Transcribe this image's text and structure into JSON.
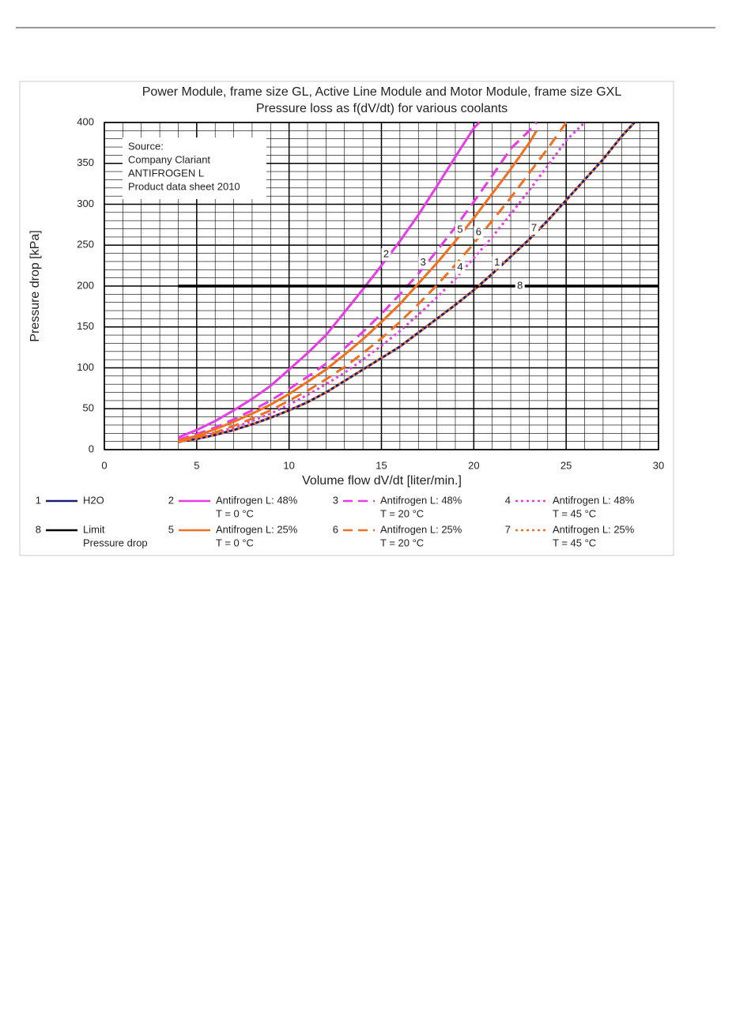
{
  "chart_data": {
    "type": "line",
    "title": "Power Module, frame size GL, Active Line Module and Motor Module, frame size GXL",
    "subtitle": "Pressure loss as f(dV/dt) for various coolants",
    "x_label": "Volume flow dV/dt [liter/min.]",
    "y_label": "Pressure drop [kPa]",
    "annotation": [
      "Source:",
      "Company Clariant",
      "ANTIFROGEN L",
      "Product data sheet 2010"
    ],
    "xlim": [
      0,
      30
    ],
    "xticks": [
      0,
      5,
      10,
      15,
      20,
      25,
      30
    ],
    "ylim": [
      0,
      400
    ],
    "yticks": [
      0,
      50,
      100,
      150,
      200,
      250,
      300,
      350,
      400
    ],
    "grid": true,
    "minor_grid_step": {
      "x": 1,
      "y": 10
    },
    "series": [
      {
        "label": "1",
        "name": "H2O",
        "color": "#1c1c78",
        "style": "solid",
        "x": [
          4,
          5,
          6,
          7,
          8,
          9,
          10,
          11,
          12,
          13,
          14,
          15,
          16,
          17,
          18,
          19,
          20,
          21,
          22,
          23,
          24,
          25,
          26,
          27,
          28,
          28.7
        ],
        "values": [
          10,
          13,
          18,
          24,
          31,
          39,
          48,
          58,
          70,
          84,
          98,
          112,
          126,
          143,
          160,
          177,
          195,
          215,
          236,
          257,
          280,
          305,
          330,
          355,
          383,
          400
        ]
      },
      {
        "label": "2",
        "name": "Antifrogen L: 48%",
        "condition": "T = 0 °C",
        "color": "#e83ae8",
        "style": "solid",
        "x": [
          4,
          5,
          6,
          7,
          8,
          9,
          10,
          11,
          12,
          13,
          14,
          15,
          16,
          17,
          18,
          19,
          20,
          20.3
        ],
        "values": [
          15,
          24,
          35,
          48,
          62,
          78,
          98,
          118,
          140,
          168,
          196,
          225,
          255,
          287,
          322,
          358,
          393,
          400
        ]
      },
      {
        "label": "3",
        "name": "Antifrogen L: 48%",
        "condition": "T = 20 °C",
        "color": "#e83ae8",
        "style": "dashed",
        "x": [
          4,
          5,
          6,
          7,
          8,
          9,
          10,
          11,
          12,
          13,
          14,
          15,
          16,
          17,
          18,
          19,
          20,
          21,
          22,
          23,
          23.4
        ],
        "values": [
          12,
          19,
          27,
          37,
          48,
          60,
          74,
          89,
          105,
          124,
          144,
          166,
          190,
          215,
          243,
          272,
          303,
          335,
          368,
          390,
          400
        ]
      },
      {
        "label": "4",
        "name": "Antifrogen L: 48%",
        "condition": "T = 45 °C",
        "color": "#e83ae8",
        "style": "dotted",
        "x": [
          4,
          5,
          6,
          7,
          8,
          9,
          10,
          11,
          12,
          13,
          14,
          15,
          16,
          17,
          18,
          19,
          20,
          21,
          22,
          23,
          24,
          25,
          26
        ],
        "values": [
          9,
          14,
          20,
          27,
          35,
          44,
          55,
          67,
          80,
          94,
          110,
          127,
          145,
          165,
          186,
          209,
          234,
          260,
          288,
          317,
          347,
          378,
          400
        ]
      },
      {
        "label": "8",
        "name": "Limit",
        "condition": "Pressure drop",
        "color": "#000000",
        "style": "solid",
        "x": [
          4,
          30
        ],
        "values": [
          200,
          200
        ]
      },
      {
        "label": "5",
        "name": "Antifrogen L: 25%",
        "condition": "T = 0 °C",
        "color": "#f07020",
        "style": "solid",
        "x": [
          4,
          5,
          6,
          7,
          8,
          9,
          10,
          11,
          12,
          13,
          14,
          15,
          16,
          17,
          18,
          19,
          20,
          21,
          22,
          23,
          23.4
        ],
        "values": [
          11,
          17,
          25,
          34,
          44,
          55,
          68,
          83,
          98,
          116,
          135,
          156,
          178,
          203,
          228,
          255,
          283,
          313,
          343,
          375,
          390
        ]
      },
      {
        "label": "6",
        "name": "Antifrogen L: 25%",
        "condition": "T = 20 °C",
        "color": "#f07020",
        "style": "dashed",
        "x": [
          4,
          5,
          6,
          7,
          8,
          9,
          10,
          11,
          12,
          13,
          14,
          15,
          16,
          17,
          18,
          19,
          20,
          21,
          22,
          23,
          24,
          25
        ],
        "values": [
          9,
          15,
          21,
          29,
          38,
          48,
          60,
          72,
          86,
          101,
          118,
          136,
          156,
          178,
          201,
          226,
          252,
          280,
          308,
          338,
          368,
          400
        ]
      },
      {
        "label": "7",
        "name": "Antifrogen L: 25%",
        "condition": "T = 45 °C",
        "color": "#f07020",
        "style": "dotted",
        "x": [
          4,
          5,
          6,
          7,
          8,
          9,
          10,
          11,
          12,
          13,
          14,
          15,
          16,
          17,
          18,
          19,
          20,
          21,
          22,
          23,
          24,
          25,
          26,
          27,
          28,
          28.7
        ],
        "values": [
          10,
          13,
          18,
          24,
          31,
          39,
          48,
          58,
          70,
          84,
          98,
          112,
          126,
          143,
          160,
          177,
          195,
          215,
          236,
          257,
          280,
          305,
          330,
          355,
          383,
          400
        ]
      }
    ]
  }
}
